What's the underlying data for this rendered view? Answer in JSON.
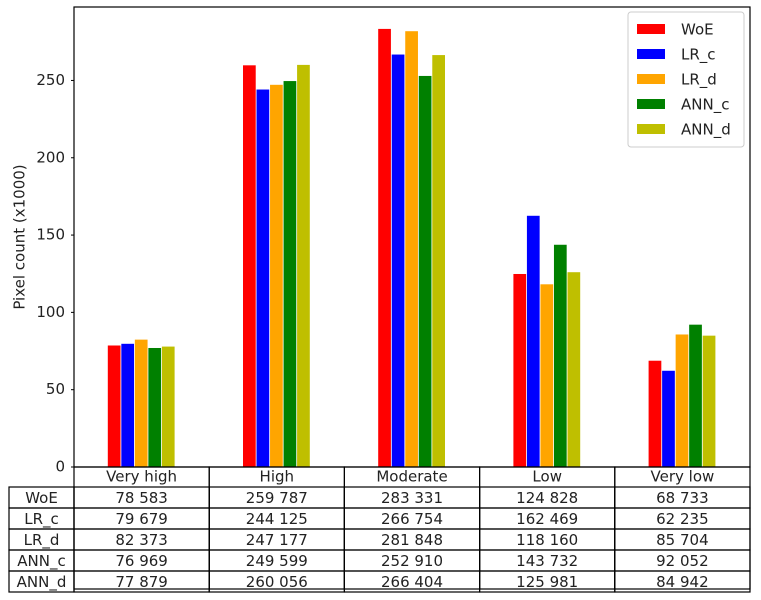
{
  "chart_data": {
    "type": "bar",
    "y_label": "Pixel count (x1000)",
    "categories": [
      "Very high",
      "High",
      "Moderate",
      "Low",
      "Very low"
    ],
    "series": [
      {
        "name": "WoE",
        "color": "#ff0000",
        "values": [
          78.583,
          259.787,
          283.331,
          124.828,
          68.733
        ],
        "value_labels": [
          "78 583",
          "259 787",
          "283 331",
          "124 828",
          "68 733"
        ]
      },
      {
        "name": "LR_c",
        "color": "#0000ff",
        "values": [
          79.679,
          244.125,
          266.754,
          162.469,
          62.235
        ],
        "value_labels": [
          "79 679",
          "244 125",
          "266 754",
          "162 469",
          "62 235"
        ]
      },
      {
        "name": "LR_d",
        "color": "#ffa500",
        "values": [
          82.373,
          247.177,
          281.848,
          118.16,
          85.704
        ],
        "value_labels": [
          "82 373",
          "247 177",
          "281 848",
          "118 160",
          "85 704"
        ]
      },
      {
        "name": "ANN_c",
        "color": "#008000",
        "values": [
          76.969,
          249.599,
          252.91,
          143.732,
          92.052
        ],
        "value_labels": [
          "76 969",
          "249 599",
          "252 910",
          "143 732",
          "92 052"
        ]
      },
      {
        "name": "ANN_d",
        "color": "#bfbf00",
        "values": [
          77.879,
          260.056,
          266.404,
          125.981,
          84.942
        ],
        "value_labels": [
          "77 879",
          "260 056",
          "266 404",
          "125 981",
          "84 942"
        ]
      }
    ],
    "ylim": [
      0,
      297.5
    ],
    "yticks": [
      0,
      50,
      100,
      150,
      200,
      250
    ],
    "legend": "upper right"
  }
}
